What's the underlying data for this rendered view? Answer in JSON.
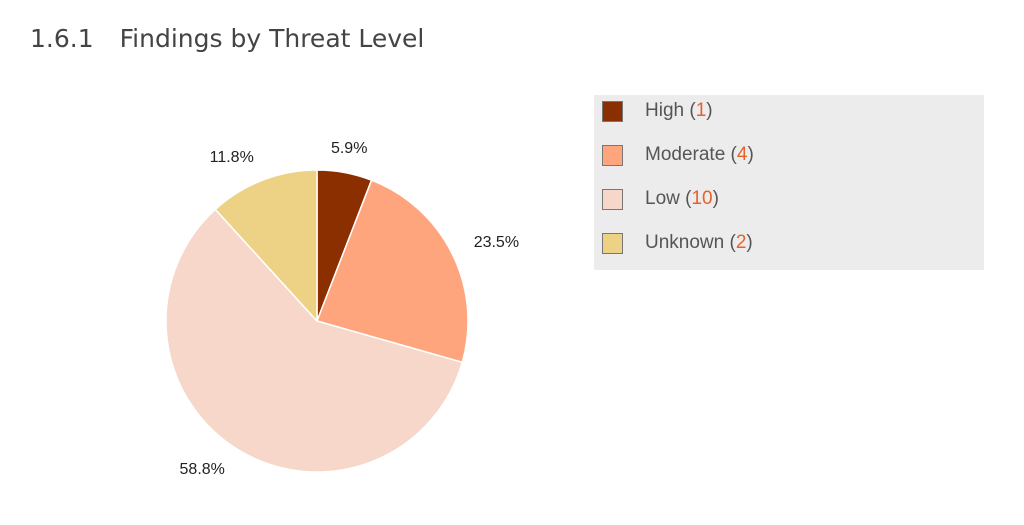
{
  "section": {
    "number": "1.6.1",
    "title": "Findings by Threat Level"
  },
  "chart_data": {
    "type": "pie",
    "title": "",
    "legend_placement": "right",
    "slices": [
      {
        "label": "High",
        "value": 1,
        "percent_label": "5.9%",
        "color": "#8b2e00"
      },
      {
        "label": "Moderate",
        "value": 4,
        "percent_label": "23.5%",
        "color": "#fea57e"
      },
      {
        "label": "Low",
        "value": 10,
        "percent_label": "58.8%",
        "color": "#f6d7c9"
      },
      {
        "label": "Unknown",
        "value": 2,
        "percent_label": "11.8%",
        "color": "#edd185"
      }
    ]
  }
}
